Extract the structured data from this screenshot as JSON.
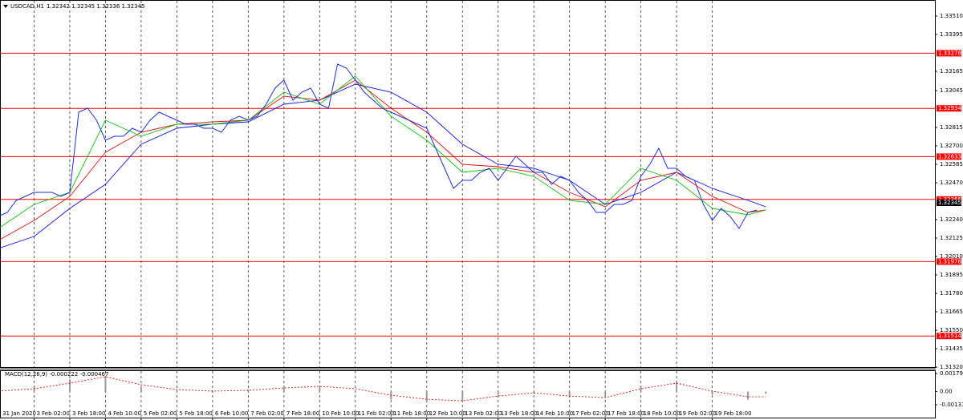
{
  "chart_data": {
    "type": "line",
    "symbol": "USDCAD,H1",
    "ohlc_text": "1.32342 1.32345 1.32336 1.32345",
    "current_price": 1.32345,
    "ylim": [
      1.3132,
      1.3361
    ],
    "yticks": [
      {
        "value": 1.3351,
        "label": "1.33510"
      },
      {
        "value": 1.33395,
        "label": "1.33395"
      },
      {
        "value": 1.33165,
        "label": "1.33165"
      },
      {
        "value": 1.33045,
        "label": "1.33045"
      },
      {
        "value": 1.32815,
        "label": "1.32815"
      },
      {
        "value": 1.327,
        "label": "1.32700"
      },
      {
        "value": 1.32585,
        "label": "1.32585"
      },
      {
        "value": 1.3247,
        "label": "1.32470"
      },
      {
        "value": 1.3224,
        "label": "1.32240"
      },
      {
        "value": 1.32125,
        "label": "1.32125"
      },
      {
        "value": 1.3201,
        "label": "1.32010"
      },
      {
        "value": 1.31895,
        "label": "1.31895"
      },
      {
        "value": 1.3178,
        "label": "1.31780"
      },
      {
        "value": 1.31665,
        "label": "1.31665"
      },
      {
        "value": 1.3155,
        "label": "1.31550"
      },
      {
        "value": 1.31435,
        "label": "1.31435"
      },
      {
        "value": 1.3132,
        "label": "1.31320"
      }
    ],
    "levels": [
      1.33278,
      1.32934,
      1.32633,
      1.32366,
      1.31978,
      1.31514
    ],
    "level_color": "#ff0000",
    "xticks": [
      {
        "value": 0,
        "label": "31 Jan 2020"
      },
      {
        "value": 16,
        "label": "3 Feb 02:00"
      },
      {
        "value": 32,
        "label": "3 Feb 18:00"
      },
      {
        "value": 48,
        "label": "4 Feb 10:00"
      },
      {
        "value": 64,
        "label": "5 Feb 02:00"
      },
      {
        "value": 80,
        "label": "5 Feb 18:00"
      },
      {
        "value": 96,
        "label": "6 Feb 10:00"
      },
      {
        "value": 112,
        "label": "7 Feb 02:00"
      },
      {
        "value": 128,
        "label": "7 Feb 18:00"
      },
      {
        "value": 144,
        "label": "10 Feb 10:00"
      },
      {
        "value": 160,
        "label": "11 Feb 02:00"
      },
      {
        "value": 176,
        "label": "11 Feb 18:00"
      },
      {
        "value": 192,
        "label": "12 Feb 10:00"
      },
      {
        "value": 208,
        "label": "13 Feb 02:00"
      },
      {
        "value": 224,
        "label": "13 Feb 18:00"
      },
      {
        "value": 240,
        "label": "14 Feb 10:00"
      },
      {
        "value": 256,
        "label": "17 Feb 02:00"
      },
      {
        "value": 272,
        "label": "17 Feb 18:00"
      },
      {
        "value": 288,
        "label": "18 Feb 10:00"
      },
      {
        "value": 304,
        "label": "19 Feb 02:00"
      },
      {
        "value": 320,
        "label": "19 Feb 18:00"
      }
    ],
    "grid": true,
    "x": [
      0,
      4,
      8,
      12,
      16,
      20,
      24,
      28,
      32,
      36,
      40,
      44,
      48,
      52,
      56,
      60,
      64,
      68,
      72,
      76,
      80,
      84,
      88,
      92,
      96,
      100,
      104,
      108,
      112,
      116,
      120,
      124,
      128,
      132,
      136,
      140,
      144,
      148,
      152,
      156,
      160,
      164,
      168,
      172,
      176,
      180,
      184,
      188,
      192,
      196,
      200,
      204,
      208,
      212,
      216,
      220,
      224,
      228,
      232,
      236,
      240,
      244,
      248,
      252,
      256,
      260,
      264,
      268,
      272,
      276,
      280,
      284,
      288,
      292,
      296,
      300,
      304,
      308,
      312,
      316,
      320,
      324,
      328,
      332,
      336,
      340
    ],
    "series": [
      {
        "color": "#1f2fd0",
        "values": [
          1.3226,
          1.32285,
          1.3236,
          1.32385,
          1.3241,
          1.3241,
          1.3241,
          1.32385,
          1.3241,
          1.3291,
          1.32935,
          1.3286,
          1.32735,
          1.3276,
          1.3276,
          1.3281,
          1.32785,
          1.3286,
          1.3291,
          1.32885,
          1.3286,
          1.32835,
          1.32835,
          1.3281,
          1.3281,
          1.32785,
          1.3286,
          1.32885,
          1.3286,
          1.32885,
          1.3296,
          1.3306,
          1.3311,
          1.32985,
          1.33035,
          1.3306,
          1.3296,
          1.32935,
          1.3321,
          1.33185,
          1.3311,
          1.33035,
          1.32985,
          1.32935,
          1.3291,
          1.32885,
          1.3286,
          1.32835,
          1.3281,
          1.32685,
          1.3256,
          1.32435,
          1.32485,
          1.32485,
          1.32535,
          1.3256,
          1.32485,
          1.3256,
          1.32635,
          1.32585,
          1.32535,
          1.32535,
          1.3246,
          1.3251,
          1.32485,
          1.3241,
          1.3236,
          1.32285,
          1.32285,
          1.32335,
          1.32335,
          1.3236,
          1.3251,
          1.32585,
          1.32685,
          1.3256,
          1.3256,
          1.3251,
          1.32485,
          1.32335,
          1.32235,
          1.3231,
          1.3226,
          1.32185,
          1.32285,
          1.323
        ]
      }
    ],
    "moving_averages": [
      {
        "color": "#1010e0",
        "x": [
          0,
          16,
          32,
          48,
          64,
          80,
          96,
          112,
          128,
          144,
          160,
          176,
          192,
          208,
          224,
          240,
          256,
          272,
          288,
          304,
          320,
          336,
          344
        ],
        "values": [
          1.3206,
          1.32135,
          1.3231,
          1.3246,
          1.3271,
          1.3281,
          1.32835,
          1.3285,
          1.3296,
          1.32985,
          1.33085,
          1.33035,
          1.3291,
          1.3271,
          1.32585,
          1.3256,
          1.32485,
          1.32335,
          1.3241,
          1.32535,
          1.32435,
          1.3236,
          1.3232
        ]
      },
      {
        "color": "#e01010",
        "x": [
          0,
          16,
          32,
          48,
          64,
          80,
          96,
          112,
          128,
          144,
          160,
          176,
          192,
          208,
          224,
          240,
          256,
          272,
          288,
          304,
          320,
          336,
          344
        ],
        "values": [
          1.3211,
          1.32235,
          1.32385,
          1.3266,
          1.32785,
          1.32835,
          1.3285,
          1.3286,
          1.3301,
          1.32985,
          1.3311,
          1.32935,
          1.32785,
          1.32585,
          1.3257,
          1.32535,
          1.3241,
          1.3232,
          1.32485,
          1.32535,
          1.32385,
          1.32285,
          1.323
        ]
      },
      {
        "color": "#10c010",
        "x": [
          0,
          16,
          32,
          48,
          64,
          80,
          96,
          112,
          128,
          144,
          160,
          176,
          192,
          208,
          224,
          240,
          256,
          272,
          288,
          304,
          320,
          336,
          344
        ],
        "values": [
          1.32185,
          1.32335,
          1.3241,
          1.3286,
          1.3276,
          1.32835,
          1.32835,
          1.3286,
          1.33035,
          1.3296,
          1.33135,
          1.32885,
          1.32735,
          1.32535,
          1.3256,
          1.3251,
          1.3236,
          1.32335,
          1.3256,
          1.32485,
          1.3231,
          1.3227,
          1.323
        ]
      }
    ],
    "macd": {
      "title": "MACD(12,26,9) -0.000222 -0.000467",
      "ylim": [
        -0.00266,
        0.00211
      ],
      "yticks": [
        0.001795,
        {
          "value": 0,
          "label": "0.00"
        },
        -0.001311
      ],
      "x": [
        0,
        16,
        32,
        48,
        64,
        80,
        96,
        112,
        128,
        144,
        160,
        176,
        192,
        208,
        224,
        240,
        256,
        272,
        288,
        304,
        320,
        336,
        344
      ],
      "histogram": [
        0.0001,
        0.0005,
        0.0012,
        0.0015,
        0.0004,
        0.0001,
        0,
        0.0002,
        0.0005,
        0.0004,
        -0.0001,
        -0.0008,
        -0.001,
        -0.0009,
        -0.0003,
        -0.0002,
        -0.0006,
        -0.0004,
        0.0006,
        0.0009,
        -0.0003,
        -0.0008,
        -0.0002
      ],
      "histogram_color": "#9a9a9a",
      "signal": [
        4e-05,
        0.00028,
        0.00084,
        0.00147,
        0.00068,
        0.0002,
        4e-05,
        0.00012,
        0.00036,
        0.00052,
        0.00028,
        -0.00036,
        -0.00076,
        -0.00092,
        -0.00044,
        -0.00012,
        -0.00044,
        -0.0006,
        0.00028,
        0.00084,
        4e-05,
        -0.00052,
        -0.00052
      ],
      "signal_color": "#e01010"
    }
  }
}
